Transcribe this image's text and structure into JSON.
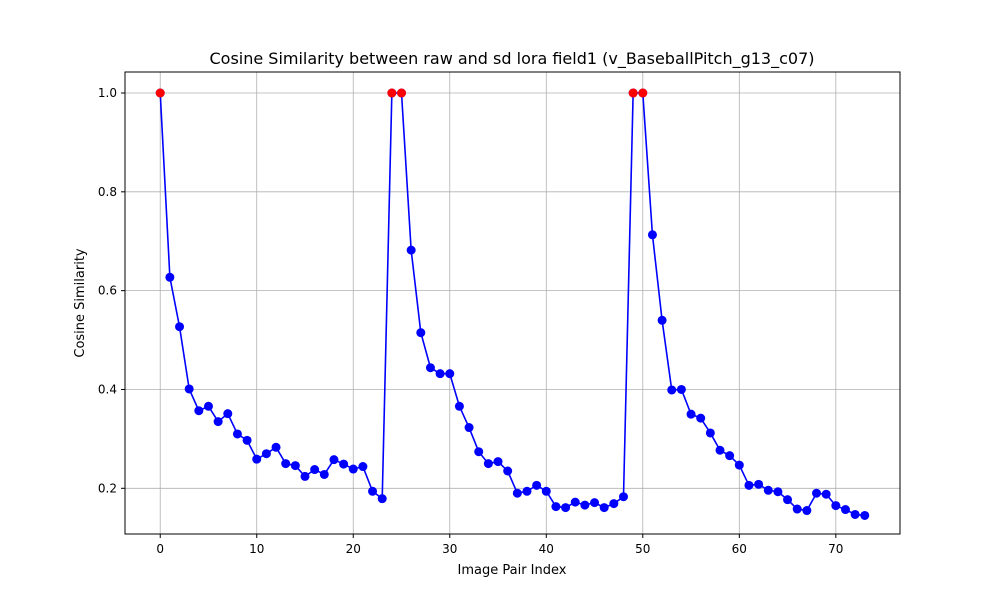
{
  "chart_data": {
    "type": "line",
    "title": "Cosine Similarity between raw and sd lora field1 (v_BaseballPitch_g13_c07)",
    "xlabel": "Image Pair Index",
    "ylabel": "Cosine Similarity",
    "xlim": [
      -3.65,
      76.65
    ],
    "ylim": [
      0.1075,
      1.0425
    ],
    "xticks": [
      0,
      10,
      20,
      30,
      40,
      50,
      60,
      70
    ],
    "yticks": [
      0.2,
      0.4,
      0.6,
      0.8,
      1.0
    ],
    "ytick_labels": [
      "0.2",
      "0.4",
      "0.6",
      "0.8",
      "1.0"
    ],
    "grid": true,
    "colors": {
      "line": "#0000ff",
      "highlight": "#ff0000",
      "grid": "#b0b0b0"
    },
    "series": [
      {
        "x": [
          0,
          1,
          2,
          3,
          4,
          5,
          6,
          7,
          8,
          9,
          10,
          11,
          12,
          13,
          14,
          15,
          16,
          17,
          18,
          19,
          20,
          21,
          22,
          23,
          24,
          25,
          26,
          27,
          28,
          29,
          30,
          31,
          32,
          33,
          34,
          35,
          36,
          37,
          38,
          39,
          40,
          41,
          42,
          43,
          44,
          45,
          46,
          47,
          48,
          49,
          50,
          51,
          52,
          53,
          54,
          55,
          56,
          57,
          58,
          59,
          60,
          61,
          62,
          63,
          64,
          65,
          66,
          67,
          68,
          69,
          70,
          71,
          72,
          73
        ],
        "values": [
          1.0,
          0.627,
          0.527,
          0.401,
          0.357,
          0.366,
          0.335,
          0.351,
          0.31,
          0.297,
          0.259,
          0.27,
          0.283,
          0.25,
          0.246,
          0.224,
          0.238,
          0.228,
          0.258,
          0.249,
          0.239,
          0.244,
          0.194,
          0.179,
          1.0,
          1.0,
          0.682,
          0.515,
          0.444,
          0.432,
          0.432,
          0.366,
          0.323,
          0.274,
          0.25,
          0.254,
          0.235,
          0.19,
          0.194,
          0.206,
          0.194,
          0.163,
          0.161,
          0.172,
          0.166,
          0.171,
          0.161,
          0.169,
          0.183,
          1.0,
          1.0,
          0.713,
          0.54,
          0.399,
          0.4,
          0.35,
          0.342,
          0.312,
          0.277,
          0.266,
          0.247,
          0.206,
          0.208,
          0.196,
          0.193,
          0.177,
          0.158,
          0.155,
          0.19,
          0.188,
          0.165,
          0.157,
          0.147,
          0.145
        ],
        "highlighted_indices": [
          0,
          24,
          25,
          49,
          50
        ]
      }
    ]
  }
}
